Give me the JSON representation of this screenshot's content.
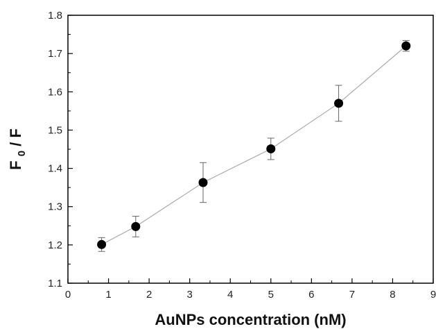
{
  "chart_data": {
    "type": "scatter",
    "title": "",
    "xlabel": "AuNPs concentration (nM)",
    "ylabel": {
      "main": "F",
      "sub": "0",
      "rest": " / F"
    },
    "xlim": [
      0,
      9
    ],
    "ylim": [
      1.1,
      1.8
    ],
    "x_ticks": [
      "0",
      "1",
      "2",
      "3",
      "4",
      "5",
      "6",
      "7",
      "8",
      "9"
    ],
    "y_ticks": [
      "1.1",
      "1.2",
      "1.3",
      "1.4",
      "1.5",
      "1.6",
      "1.7",
      "1.8"
    ],
    "grid": false,
    "connect_points": true,
    "series": [
      {
        "points": [
          {
            "x": 0.83,
            "y": 1.201,
            "err": 0.018
          },
          {
            "x": 1.67,
            "y": 1.248,
            "err": 0.027
          },
          {
            "x": 3.33,
            "y": 1.363,
            "err": 0.052
          },
          {
            "x": 5.0,
            "y": 1.451,
            "err": 0.028
          },
          {
            "x": 6.67,
            "y": 1.57,
            "err": 0.047
          },
          {
            "x": 8.33,
            "y": 1.72,
            "err": 0.014
          }
        ],
        "marker_color": "#000000",
        "line_color": "#aaaaaa",
        "error_color": "#666666"
      }
    ]
  }
}
